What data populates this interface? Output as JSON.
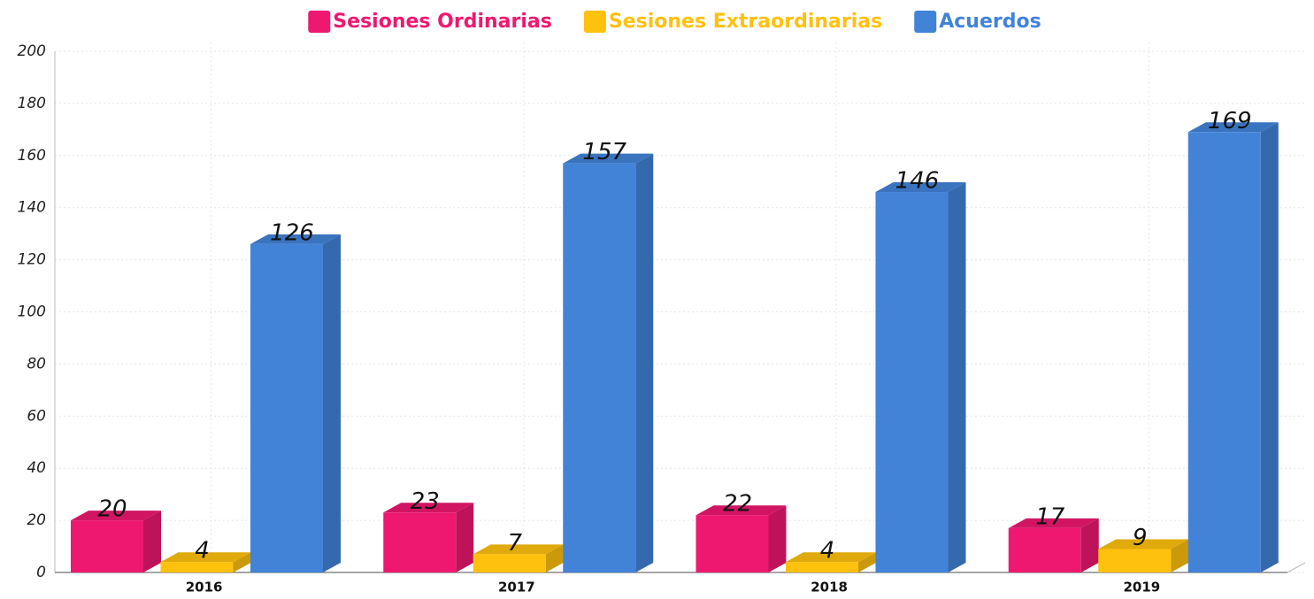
{
  "chart_data": {
    "type": "bar3d",
    "categories": [
      "2016",
      "2017",
      "2018",
      "2019"
    ],
    "series": [
      {
        "name": "Sesiones Ordinarias",
        "color": "#ee1870",
        "values": [
          20,
          23,
          22,
          17
        ]
      },
      {
        "name": "Sesiones Extraordinarias",
        "color": "#fec10e",
        "values": [
          4,
          7,
          4,
          9
        ]
      },
      {
        "name": "Acuerdos",
        "color": "#4283d8",
        "values": [
          126,
          157,
          146,
          169
        ]
      }
    ],
    "ylim": [
      0,
      200
    ],
    "yticks": [
      0,
      20,
      40,
      60,
      80,
      100,
      120,
      140,
      160,
      180,
      200
    ],
    "grid": true,
    "legend": "top"
  }
}
